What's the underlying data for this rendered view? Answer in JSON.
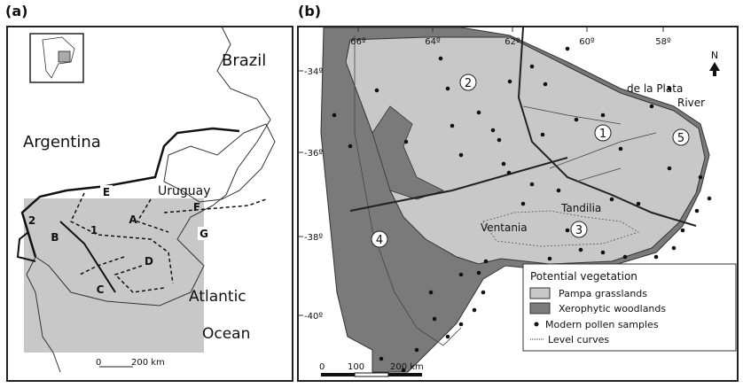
{
  "panel_a": {
    "label": "(a)",
    "places": {
      "brazil": "Brazil",
      "argentina": "Argentina",
      "uruguay": "Uruguay",
      "atlantic": "Atlantic",
      "ocean": "Ocean"
    },
    "regions": [
      "G",
      "E",
      "F",
      "A",
      "1",
      "2",
      "B",
      "D",
      "C"
    ],
    "scale": {
      "start": "0",
      "end": "200 km"
    }
  },
  "panel_b": {
    "label": "(b)",
    "longitudes": [
      "66º",
      "64º",
      "62º",
      "60º",
      "58º"
    ],
    "latitudes": [
      "-34º",
      "-36º",
      "-38º",
      "-40º"
    ],
    "north": "N",
    "places": {
      "river_1": "de la Plata",
      "river_2": "River",
      "tandilia": "Tandilia",
      "ventania": "Ventania"
    },
    "zones": [
      "1",
      "2",
      "3",
      "4",
      "5"
    ],
    "legend": {
      "title": "Potential vegetation",
      "items": [
        "Pampa grasslands",
        "Xerophytic woodlands",
        "Modern pollen samples",
        "Level curves"
      ]
    },
    "scale": [
      "0",
      "100",
      "200 km"
    ]
  }
}
